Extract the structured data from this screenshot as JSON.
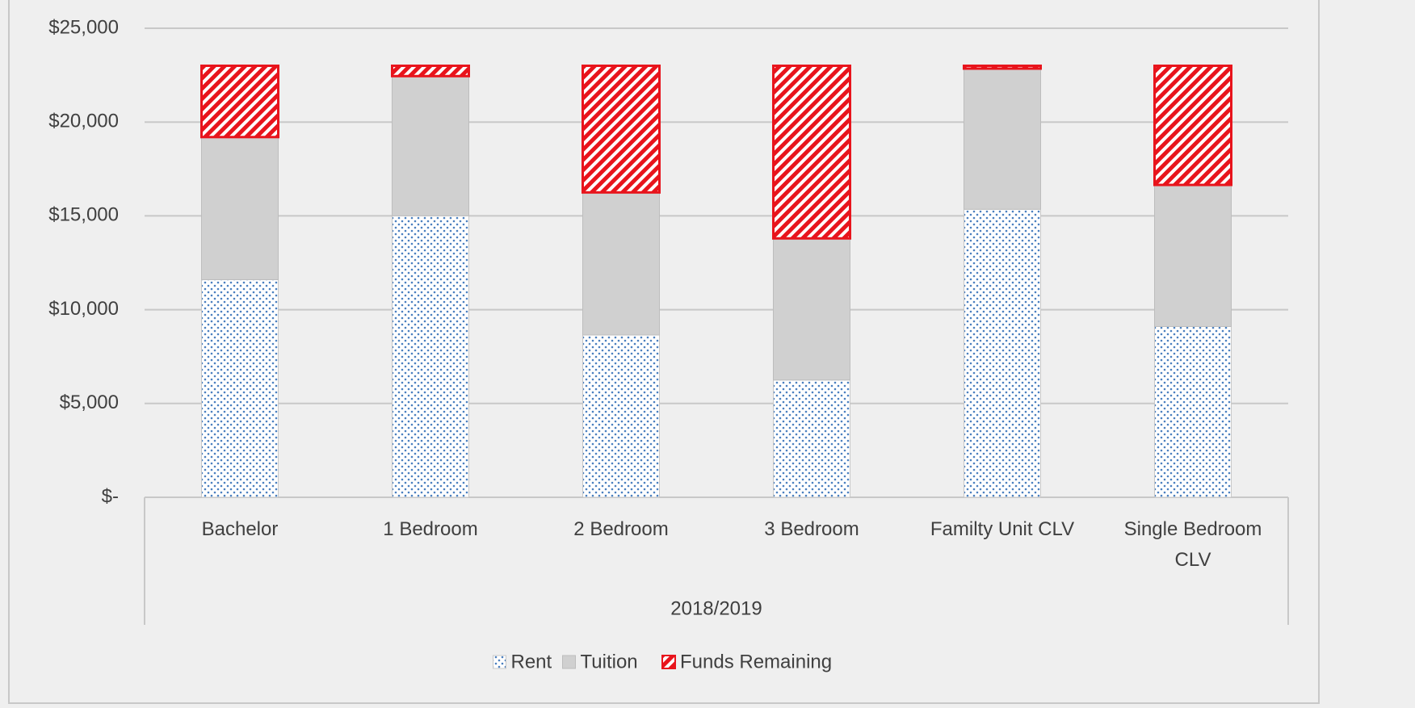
{
  "chart_data": {
    "type": "stacked_bar",
    "categories": [
      "Bachelor",
      "1 Bedroom",
      "2 Bedroom",
      "3 Bedroom",
      "Familty Unit CLV",
      "Single Bedroom CLV"
    ],
    "group_label": "2018/2019",
    "series": [
      {
        "name": "Rent",
        "color": "#4a7fbf",
        "values": [
          11600,
          15000,
          8650,
          6250,
          15350,
          9100
        ]
      },
      {
        "name": "Tuition",
        "color": "#d0d0d0",
        "values": [
          7600,
          7450,
          7600,
          7550,
          7500,
          7550
        ]
      },
      {
        "name": "Funds Remaining",
        "color": "#e8141c",
        "values": [
          3800,
          550,
          6750,
          9200,
          150,
          6350
        ]
      }
    ],
    "ylim": [
      0,
      25000
    ],
    "yticks": [
      {
        "value": 0,
        "label": "$-"
      },
      {
        "value": 5000,
        "label": "$5,000"
      },
      {
        "value": 10000,
        "label": "$10,000"
      },
      {
        "value": 15000,
        "label": "$15,000"
      },
      {
        "value": 20000,
        "label": "$20,000"
      },
      {
        "value": 25000,
        "label": "$25,000"
      }
    ],
    "grid": true,
    "legend": "bottom"
  }
}
